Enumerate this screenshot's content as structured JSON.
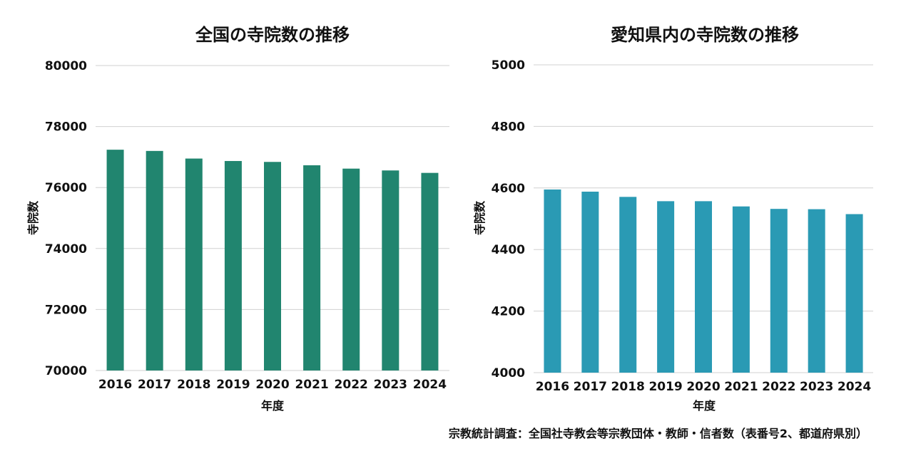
{
  "chart_data": [
    {
      "type": "bar",
      "title": "全国の寺院数の推移",
      "xlabel": "年度",
      "ylabel": "寺院数",
      "categories": [
        "2016",
        "2017",
        "2018",
        "2019",
        "2020",
        "2021",
        "2022",
        "2023",
        "2024"
      ],
      "values": [
        77240,
        77200,
        76950,
        76870,
        76840,
        76730,
        76620,
        76560,
        76480
      ],
      "ylim": [
        70000,
        80000
      ],
      "yticks": [
        "70000",
        "72000",
        "74000",
        "76000",
        "78000",
        "80000"
      ],
      "grid": true,
      "color": "#21856f"
    },
    {
      "type": "bar",
      "title": "愛知県内の寺院数の推移",
      "xlabel": "年度",
      "ylabel": "寺院数",
      "categories": [
        "2016",
        "2017",
        "2018",
        "2019",
        "2020",
        "2021",
        "2022",
        "2023",
        "2024"
      ],
      "values": [
        4595,
        4588,
        4571,
        4557,
        4557,
        4540,
        4532,
        4531,
        4515
      ],
      "ylim": [
        4000,
        5000
      ],
      "yticks": [
        "4000",
        "4200",
        "4400",
        "4600",
        "4800",
        "5000"
      ],
      "grid": true,
      "color": "#2a9ab4"
    }
  ],
  "source": "宗教統計調査：全国社寺教会等宗教団体・教師・信者数（表番号2、都道府県別）"
}
